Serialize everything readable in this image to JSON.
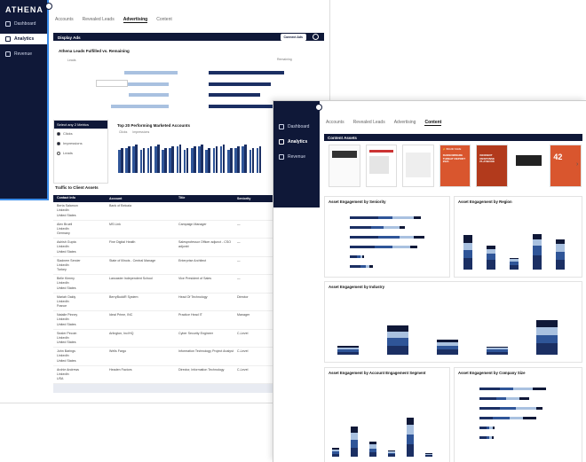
{
  "colors": {
    "navy": "#0f1838",
    "accent": "#3a8be8",
    "light": "#a9c1e0",
    "mid": "#2f5598",
    "dark": "#1b2f63"
  },
  "back": {
    "logo": "ATHENA",
    "nav": [
      {
        "label": "Dashboard",
        "icon": "home-icon"
      },
      {
        "label": "Analytics",
        "icon": "analytics-icon"
      },
      {
        "label": "Revenue",
        "icon": "revenue-icon"
      }
    ],
    "tabs": [
      "Accounts",
      "Revealed Leads",
      "Advertising",
      "Content"
    ],
    "active_tab": "Advertising",
    "display_ads": {
      "title": "Display Ads",
      "button": "Connect Ads"
    },
    "leads_chart": {
      "title": "Athena Leads Fulfilled vs. Remaining",
      "legend_a": "Leads",
      "legend_b": "Remaining"
    },
    "metrics_panel": {
      "header": "Select any 2 Metrics",
      "options": [
        "Clicks",
        "Impressions",
        "Leads"
      ]
    },
    "top_accounts": {
      "title": "Top 20 Performing Marketed Accounts",
      "legend": [
        "Clicks",
        "Impressions"
      ]
    },
    "traffic": {
      "title": "Traffic to Client Assets",
      "columns": [
        "Contact Info",
        "Account",
        "Title",
        "Seniority"
      ],
      "rows": [
        {
          "name": "Berta Salamon",
          "l2": "LinkedIn",
          "l3": "United States",
          "account": "Bank of Belcaia",
          "title": "",
          "seniority": ""
        },
        {
          "name": "Alex Bruell",
          "l2": "LinkedIn",
          "l3": "Germany",
          "account": "MS Link",
          "title": "Campaign Manager",
          "seniority": "—"
        },
        {
          "name": "Ashish Gupta",
          "l2": "LinkedIn",
          "l3": "United States",
          "account": "Fine Digital Health",
          "title": "Salesprofessor Officer adjunct - CSO adjunkt",
          "seniority": "—"
        },
        {
          "name": "Sladnem Sercier",
          "l2": "LinkedIn",
          "l3": "Turkey",
          "account": "State of Illinois - Central Manage",
          "title": "Enterprise Architect",
          "seniority": "—"
        },
        {
          "name": "Belle Kimmy",
          "l2": "LinkedIn",
          "l3": "United States",
          "account": "Lancaster Independent School",
          "title": "Vice President of Sales",
          "seniority": "—"
        },
        {
          "name": "Mariah Oakly",
          "l2": "LinkedIn",
          "l3": "France",
          "account": "BerryBuddR System",
          "title": "Head Of Technology",
          "seniority": "Director"
        },
        {
          "name": "Natalie Pinney",
          "l2": "LinkedIn",
          "l3": "United States",
          "account": "Ideal Prime, INC",
          "title": "Practice Head IT",
          "seniority": "Manager"
        },
        {
          "name": "Sealer Pecoin",
          "l2": "LinkedIn",
          "l3": "United States",
          "account": "Arlington, Inc/HQ",
          "title": "Cyber Security Engineer",
          "seniority": "C-Level"
        },
        {
          "name": "John Barings",
          "l2": "LinkedIn",
          "l3": "United States",
          "account": "Wells Fargo",
          "title": "Information Technology Project Analyst",
          "seniority": "C-Level"
        },
        {
          "name": "Archie Andrews",
          "l2": "LinkedIn",
          "l3": "USA",
          "account": "Headen Factors",
          "title": "Director, Information Technology",
          "seniority": "C-Level"
        }
      ]
    }
  },
  "front": {
    "logo": "",
    "nav": [
      {
        "label": "Dashboard",
        "icon": "home-icon"
      },
      {
        "label": "Analytics",
        "icon": "analytics-icon"
      },
      {
        "label": "Revenue",
        "icon": "revenue-icon"
      }
    ],
    "tabs": [
      "Accounts",
      "Revealed Leads",
      "Advertising",
      "Content"
    ],
    "active_tab": "Content",
    "content_assets": {
      "title": "Content Assets"
    },
    "thumbnails": [
      {
        "brand": "",
        "title": ""
      },
      {
        "brand": "",
        "title": ""
      },
      {
        "brand": "",
        "title": ""
      },
      {
        "brand": "⚡ BRAND NAME",
        "title": "RANSOMWARE THREAT REPORT 2024"
      },
      {
        "brand": "",
        "title": "INCIDENT RESPONSE PLAYBOOK"
      },
      {
        "brand": "",
        "title": ""
      },
      {
        "brand": "",
        "title": "42"
      }
    ],
    "seniority_chart": {
      "title": "Asset Engagement by Seniority"
    },
    "region_chart": {
      "title": "Asset Engagement by Region"
    },
    "industry_chart": {
      "title": "Asset Engagement by Industry"
    },
    "segment_chart": {
      "title": "Asset Engagement by Account Engagement Segment"
    },
    "company_size_chart": {
      "title": "Asset Engagement by Company Size"
    }
  }
}
